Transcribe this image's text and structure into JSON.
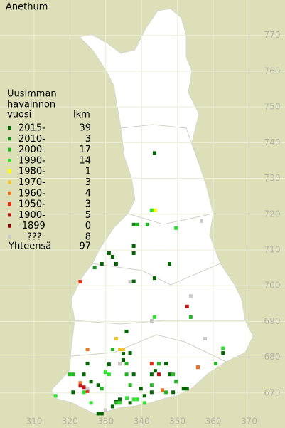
{
  "title": "Anethum",
  "legend_header": [
    "Uusimman",
    "havainnon",
    "vuosi"
  ],
  "count_header": "lkm",
  "total_label": "Yhteensä",
  "total": 97,
  "xticks": [
    310,
    320,
    330,
    340,
    350,
    360,
    370
  ],
  "yticks": [
    670,
    680,
    690,
    700,
    710,
    720,
    730,
    740,
    750,
    760,
    770
  ],
  "xlim": [
    300.5,
    380
  ],
  "ylim": [
    660.2,
    779.9
  ],
  "series": [
    {
      "name": "2015-",
      "count": 39,
      "color": "#006400",
      "x": [
        343.6,
        337.8,
        330.9,
        331.9,
        328.9,
        332.9,
        337.8,
        347.8,
        343.6,
        335.8,
        362.7,
        334.9,
        344.8,
        346.8,
        324.9,
        323.9,
        337.8,
        342.8,
        343.8,
        347.8,
        325.9,
        327.9,
        320.9,
        339.8,
        352.7,
        351.7,
        348.8,
        342.8,
        340.8,
        336.8,
        333.9,
        331.9,
        328.9,
        327.9,
        337.8,
        336.8,
        334.9,
        332.9,
        330.9
      ],
      "y": [
        737.1,
        711.1,
        709.1,
        708.1,
        706.1,
        706.1,
        709.1,
        706.1,
        702.1,
        687.2,
        681.2,
        679.2,
        678.2,
        678.2,
        678.2,
        675.2,
        675.2,
        675.2,
        676.2,
        675.2,
        673.2,
        672.2,
        670.2,
        671.2,
        671.2,
        671.2,
        670.2,
        670.2,
        669.2,
        667.2,
        668.2,
        666.2,
        664.2,
        664.2,
        701.2,
        681.2,
        681.0,
        667.5,
        678.0
      ]
    },
    {
      "name": "2010-",
      "count": 3,
      "color": "#1e8c1e",
      "x": [
        337.8,
        326.9,
        355.7
      ],
      "y": [
        717.1,
        705.1,
        677.2
      ]
    },
    {
      "name": "2000-",
      "count": 17,
      "color": "#22b422",
      "x": [
        338.8,
        341.6,
        335.8,
        344.8,
        360.7,
        319.9,
        320.9,
        335.8,
        348.8,
        328.9,
        336.8,
        342.8,
        346.8,
        332.9,
        353.7,
        331.9,
        349.6
      ],
      "y": [
        717.1,
        717.1,
        678.2,
        678.2,
        678.2,
        675.2,
        675.2,
        675.2,
        675.2,
        671.2,
        672.2,
        672.2,
        670.2,
        667.2,
        691.2,
        682.2,
        673.2
      ]
    },
    {
      "name": "1990-",
      "count": 14,
      "color": "#30e030",
      "x": [
        342.8,
        349.6,
        343.6,
        330.9,
        337.8,
        338.8,
        333.9,
        316.0,
        325.9,
        340.8,
        323.9,
        329.9,
        335.9,
        362.7
      ],
      "y": [
        721.1,
        716.1,
        691.2,
        675.2,
        668.2,
        668.2,
        667.2,
        669.2,
        667.2,
        667.2,
        670.2,
        675.8,
        668.6,
        682.5
      ]
    },
    {
      "name": "1980-",
      "count": 1,
      "color": "#ffff00",
      "x": [
        343.8
      ],
      "y": [
        721.1
      ]
    },
    {
      "name": "1970-",
      "count": 3,
      "color": "#f0c428",
      "x": [
        332.9,
        333.9,
        334.9
      ],
      "y": [
        685.2,
        682.2,
        682.2
      ]
    },
    {
      "name": "1960-",
      "count": 4,
      "color": "#f07020",
      "x": [
        324.9,
        355.7,
        345.8,
        322.9
      ],
      "y": [
        682.2,
        677.2,
        670.8,
        672.8
      ]
    },
    {
      "name": "1950-",
      "count": 3,
      "color": "#e82c10",
      "x": [
        322.9,
        342.8,
        324.9
      ],
      "y": [
        701.1,
        678.2,
        670.5
      ]
    },
    {
      "name": "1900-",
      "count": 5,
      "color": "#c01010",
      "x": [
        333.9,
        352.7,
        344.8,
        323.9,
        322.9
      ],
      "y": [
        678.2,
        694.2,
        675.2,
        671.6,
        672.0
      ]
    },
    {
      "name": "-1899",
      "count": 0,
      "color": "#800000",
      "x": [],
      "y": []
    },
    {
      "name": "???",
      "count": 8,
      "color": "#c8c8c8",
      "x": [
        356.7,
        336.8,
        353.7,
        357.7,
        333.9,
        324.9,
        329.9,
        342.8
      ],
      "y": [
        718.1,
        701.1,
        697.1,
        685.2,
        678.2,
        671.2,
        665.2,
        690.2
      ]
    }
  ]
}
